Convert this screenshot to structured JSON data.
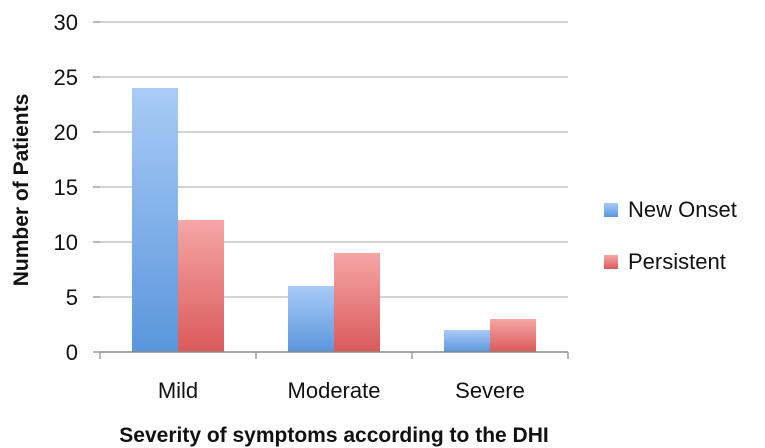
{
  "chart_data": {
    "type": "bar",
    "title": "",
    "xlabel": "Severity of symptoms according to the DHI",
    "ylabel": "Number of Patients",
    "categories": [
      "Mild",
      "Moderate",
      "Severe"
    ],
    "series": [
      {
        "name": "New Onset",
        "values": [
          24,
          6,
          2
        ],
        "color_top": "#a9cbf7",
        "color_bottom": "#5a96dc"
      },
      {
        "name": "Persistent",
        "values": [
          12,
          9,
          3
        ],
        "color_top": "#f6a6a6",
        "color_bottom": "#da5a5a"
      }
    ],
    "ylim": [
      0,
      30
    ],
    "yticks": [
      0,
      5,
      10,
      15,
      20,
      25,
      30
    ],
    "grid": true,
    "legend_position": "right"
  }
}
